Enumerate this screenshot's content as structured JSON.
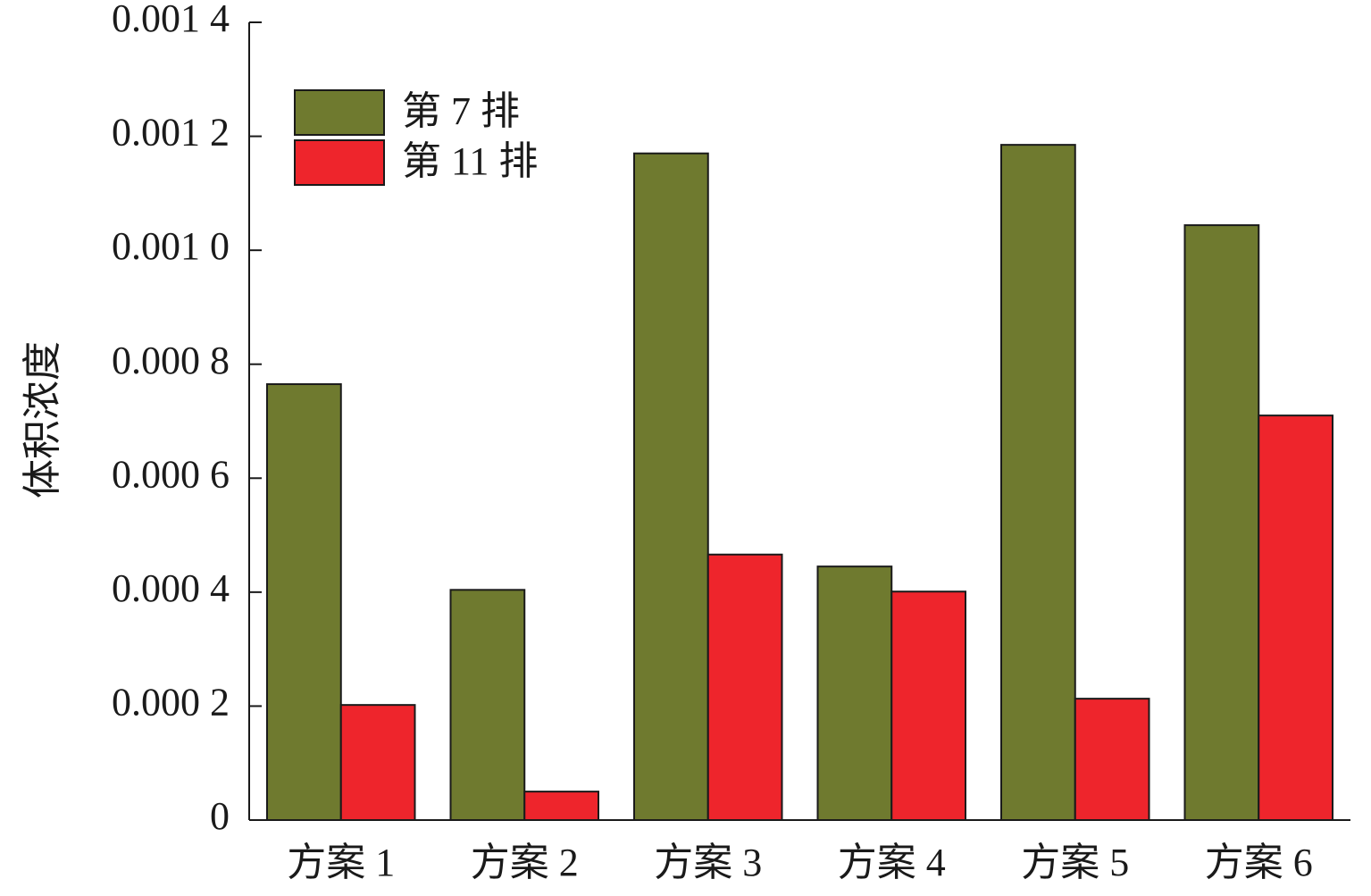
{
  "chart_data": {
    "type": "bar",
    "y_label": "体积浓度",
    "categories": [
      "方案 1",
      "方案 2",
      "方案 3",
      "方案 4",
      "方案 5",
      "方案 6"
    ],
    "series": [
      {
        "name": "第 7 排",
        "color": "#6f7a2f",
        "values": [
          0.000765,
          0.000404,
          0.00117,
          0.000445,
          0.001185,
          0.001044
        ]
      },
      {
        "name": "第 11 排",
        "color": "#ee252c",
        "values": [
          0.000202,
          5e-05,
          0.000466,
          0.000401,
          0.000213,
          0.00071
        ]
      }
    ],
    "ylim": [
      0,
      0.0014
    ],
    "yticks": [
      0,
      {
        "value": 0.0002,
        "label": "0.000 2"
      },
      {
        "value": 0.0004,
        "label": "0.000 4"
      },
      {
        "value": 0.0006,
        "label": "0.000 6"
      },
      {
        "value": 0.0008,
        "label": "0.000 8"
      },
      {
        "value": 0.001,
        "label": "0.001 0"
      },
      {
        "value": 0.0012,
        "label": "0.001 2"
      },
      {
        "value": 0.0014,
        "label": "0.001 4"
      }
    ],
    "legend": "upper-left"
  }
}
